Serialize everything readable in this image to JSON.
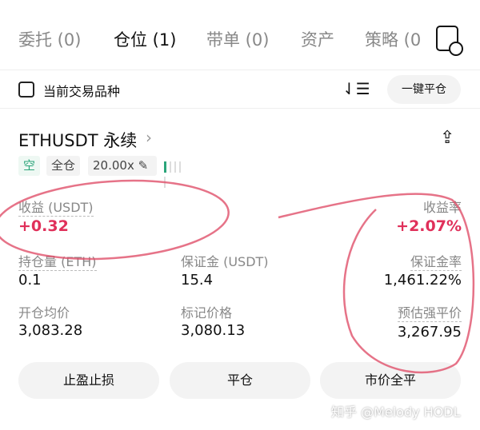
{
  "tabs": [
    {
      "label": "委托 (0)"
    },
    {
      "label": "仓位 (1)",
      "active": true
    },
    {
      "label": "带单 (0)"
    },
    {
      "label": "资产"
    },
    {
      "label": "策略 (0)"
    }
  ],
  "toolbar": {
    "current_symbol_only": "当前交易品种",
    "close_all": "一键平仓",
    "checked": false
  },
  "position": {
    "symbol": "ETHUSDT 永续",
    "side": "空",
    "margin_mode": "全仓",
    "leverage": "20.00x",
    "pnl_label": "收益 (USDT)",
    "pnl": "+0.32",
    "roe_label": "收益率",
    "roe": "+2.07%",
    "size_label": "持仓量 (ETH)",
    "size": "0.1",
    "margin_label": "保证金 (USDT)",
    "margin": "15.4",
    "margin_ratio_label": "保证金率",
    "margin_ratio": "1,461.22%",
    "entry_label": "开仓均价",
    "entry": "3,083.28",
    "mark_label": "标记价格",
    "mark": "3,080.13",
    "liq_label": "预估强平价",
    "liq": "3,267.95"
  },
  "actions": {
    "tpsl": "止盈止损",
    "close": "平仓",
    "market_close": "市价全平"
  },
  "watermark": "知乎 @Melody HODL",
  "colors": {
    "profit": "#e0305a",
    "short": "#2ba57a",
    "annotation": "#e0506a"
  }
}
